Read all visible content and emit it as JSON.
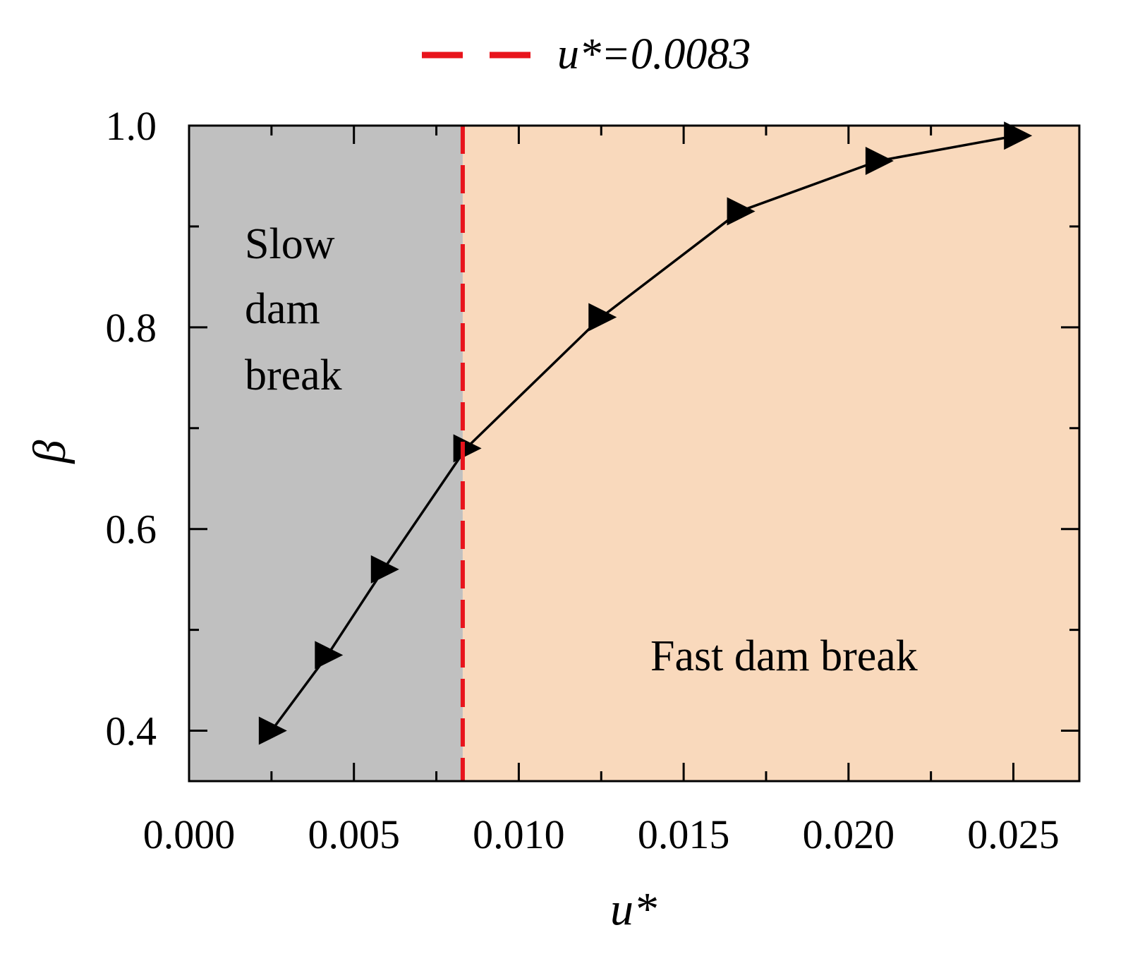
{
  "chart_data": {
    "type": "line",
    "title": "",
    "xlabel": "u*",
    "ylabel": "β",
    "xlim": [
      0.0,
      0.027
    ],
    "ylim": [
      0.35,
      1.0
    ],
    "x_ticks": [
      {
        "value": 0.0,
        "label": "0.000"
      },
      {
        "value": 0.005,
        "label": "0.005"
      },
      {
        "value": 0.01,
        "label": "0.010"
      },
      {
        "value": 0.015,
        "label": "0.015"
      },
      {
        "value": 0.02,
        "label": "0.020"
      },
      {
        "value": 0.025,
        "label": "0.025"
      }
    ],
    "x_minor_ticks": [
      0.0025,
      0.0075,
      0.0125,
      0.0175,
      0.0225
    ],
    "y_ticks": [
      {
        "value": 0.4,
        "label": "0.4"
      },
      {
        "value": 0.6,
        "label": "0.6"
      },
      {
        "value": 0.8,
        "label": "0.8"
      },
      {
        "value": 1.0,
        "label": "1.0"
      }
    ],
    "y_minor_ticks": [
      0.5,
      0.7,
      0.9
    ],
    "series": [
      {
        "name": "β",
        "marker": "triangle-right",
        "color": "#000000",
        "x": [
          0.0025,
          0.0042,
          0.0059,
          0.0084,
          0.0125,
          0.0167,
          0.0209,
          0.0251
        ],
        "y": [
          0.4,
          0.475,
          0.56,
          0.68,
          0.81,
          0.915,
          0.965,
          0.99
        ]
      }
    ],
    "threshold": {
      "x": 0.0083,
      "legend_label": "u*=0.0083",
      "color": "#e8141c",
      "style": "dashed"
    },
    "regions": [
      {
        "name": "slow",
        "x_from": 0.0,
        "x_to": 0.0083,
        "color": "#c0c0c0",
        "label_lines": [
          "Slow",
          "dam",
          "break"
        ]
      },
      {
        "name": "fast",
        "x_from": 0.0083,
        "x_to": 0.027,
        "color": "#f9d9bc",
        "label": "Fast dam break"
      }
    ],
    "legend": {
      "position": "top",
      "entries": [
        "u*=0.0083"
      ]
    }
  }
}
